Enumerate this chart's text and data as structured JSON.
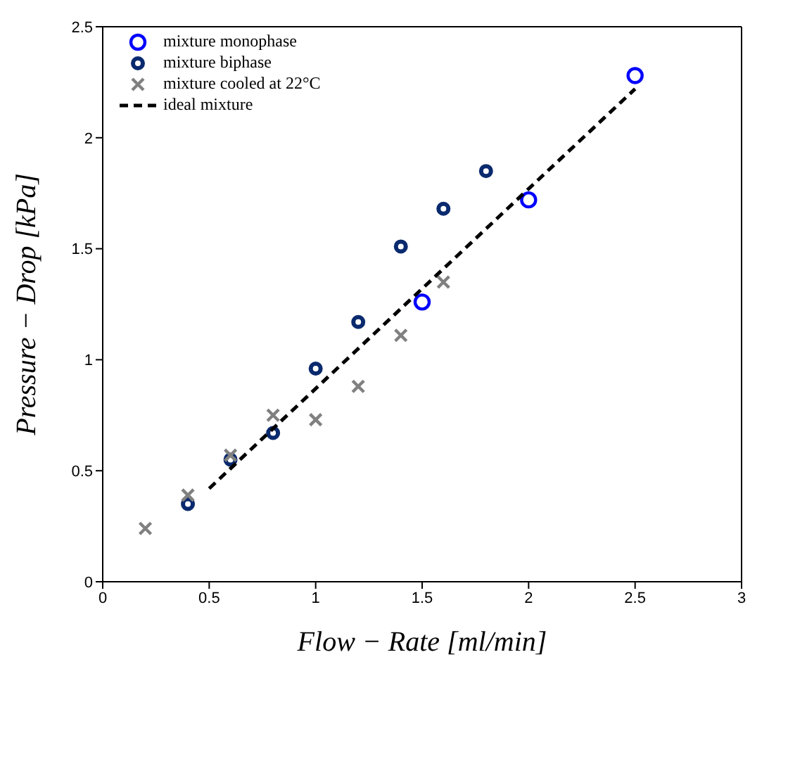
{
  "chart_data": {
    "type": "scatter",
    "xlabel": "Flow − Rate [ml/min]",
    "ylabel": "Pressure − Drop [kPa]",
    "xlim": [
      0,
      3
    ],
    "xticks": [
      0,
      0.5,
      1,
      1.5,
      2,
      2.5,
      3
    ],
    "ylim": [
      0,
      2.5
    ],
    "yticks": [
      0,
      0.5,
      1,
      1.5,
      2,
      2.5
    ],
    "grid": false,
    "legend": "top left",
    "series": [
      {
        "name": "mixture monophase",
        "marker": "circle",
        "color": "#0000ff",
        "x": [
          1.5,
          2,
          2.5
        ],
        "values": [
          1.26,
          1.72,
          2.28
        ]
      },
      {
        "name": "mixture biphase",
        "marker": "circle",
        "color": "#0a2a6e",
        "x": [
          0.4,
          0.6,
          0.8,
          1,
          1.2,
          1.4,
          1.6,
          1.8
        ],
        "values": [
          0.35,
          0.55,
          0.67,
          0.96,
          1.17,
          1.51,
          1.68,
          1.85
        ]
      },
      {
        "name": "mixture cooled at 22°C",
        "marker": "cross",
        "color": "#808080",
        "x": [
          0.2,
          0.4,
          0.6,
          0.8,
          1,
          1.2,
          1.4,
          1.6
        ],
        "values": [
          0.24,
          0.39,
          0.57,
          0.75,
          0.73,
          0.88,
          1.11,
          1.35
        ]
      },
      {
        "name": "ideal mixture",
        "type": "line",
        "line_style": "dashed",
        "marker": "none",
        "color": "#000000",
        "x": [
          0.5,
          2.5
        ],
        "values": [
          0.42,
          2.22
        ]
      }
    ]
  }
}
